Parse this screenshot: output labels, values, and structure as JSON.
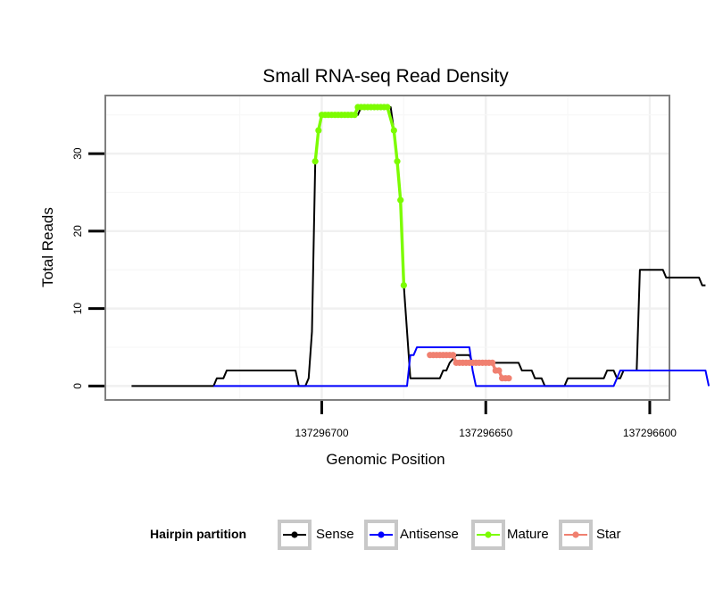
{
  "chart_data": {
    "type": "line",
    "title": "Small RNA-seq Read Density",
    "xlabel": "Genomic Position",
    "ylabel": "Total Reads",
    "xlim": [
      137296766,
      137296594
    ],
    "ylim": [
      -1.8,
      37.5
    ],
    "x_reversed": true,
    "x_ticks": [
      137296700,
      137296650,
      137296600
    ],
    "x_tick_labels": [
      "137296700",
      "137296650",
      "137296600"
    ],
    "y_ticks": [
      0,
      10,
      20,
      30
    ],
    "y_tick_labels": [
      "0",
      "10",
      "20",
      "30"
    ],
    "legend": {
      "title": "Hairpin partition",
      "position": "bottom",
      "entries": [
        "Sense",
        "Antisense",
        "Mature",
        "Star"
      ]
    },
    "colors": {
      "Sense": "#000000",
      "Antisense": "#0000ff",
      "Mature": "#7cfc00",
      "Star": "#f08070"
    },
    "series": [
      {
        "name": "Sense",
        "points": [
          [
            137296758,
            0
          ],
          [
            137296733,
            0
          ],
          [
            137296732,
            1
          ],
          [
            137296730,
            1
          ],
          [
            137296729,
            2
          ],
          [
            137296717,
            2
          ],
          [
            137296708,
            2
          ],
          [
            137296707,
            0
          ],
          [
            137296705,
            0
          ],
          [
            137296704,
            1
          ],
          [
            137296703,
            7
          ],
          [
            137296702,
            29
          ],
          [
            137296701,
            33
          ],
          [
            137296700,
            35
          ],
          [
            137296699,
            35
          ],
          [
            137296689,
            35
          ],
          [
            137296688,
            36
          ],
          [
            137296679,
            36
          ],
          [
            137296678,
            33
          ],
          [
            137296677,
            29
          ],
          [
            137296676,
            24
          ],
          [
            137296675,
            13
          ],
          [
            137296673,
            1
          ],
          [
            137296664,
            1
          ],
          [
            137296663,
            2
          ],
          [
            137296662,
            2
          ],
          [
            137296661,
            3
          ],
          [
            137296659,
            4
          ],
          [
            137296655,
            4
          ],
          [
            137296654,
            3
          ],
          [
            137296640,
            3
          ],
          [
            137296639,
            2
          ],
          [
            137296636,
            2
          ],
          [
            137296635,
            1
          ],
          [
            137296633,
            1
          ],
          [
            137296632,
            0
          ],
          [
            137296626,
            0
          ],
          [
            137296625,
            1
          ],
          [
            137296614,
            1
          ],
          [
            137296613,
            2
          ],
          [
            137296611,
            2
          ],
          [
            137296610,
            1
          ],
          [
            137296609,
            1
          ],
          [
            137296608,
            2
          ],
          [
            137296604,
            2
          ],
          [
            137296603,
            15
          ],
          [
            137296596,
            15
          ],
          [
            137296595,
            14
          ],
          [
            137296585,
            14
          ],
          [
            137296584,
            13
          ],
          [
            137296583,
            13
          ]
        ]
      },
      {
        "name": "Antisense",
        "points": [
          [
            137296733,
            0
          ],
          [
            137296674,
            0
          ],
          [
            137296673,
            4
          ],
          [
            137296672,
            4
          ],
          [
            137296671,
            5
          ],
          [
            137296655,
            5
          ],
          [
            137296654,
            2
          ],
          [
            137296653,
            0
          ],
          [
            137296611,
            0
          ],
          [
            137296610,
            1
          ],
          [
            137296609,
            2
          ],
          [
            137296590,
            2
          ],
          [
            137296583,
            2
          ],
          [
            137296582,
            0
          ]
        ]
      },
      {
        "name": "Mature",
        "points": [
          [
            137296702,
            29
          ],
          [
            137296701,
            33
          ],
          [
            137296700,
            35
          ],
          [
            137296699,
            35
          ],
          [
            137296698,
            35
          ],
          [
            137296697,
            35
          ],
          [
            137296696,
            35
          ],
          [
            137296695,
            35
          ],
          [
            137296694,
            35
          ],
          [
            137296693,
            35
          ],
          [
            137296692,
            35
          ],
          [
            137296691,
            35
          ],
          [
            137296690,
            35
          ],
          [
            137296689,
            36
          ],
          [
            137296688,
            36
          ],
          [
            137296687,
            36
          ],
          [
            137296686,
            36
          ],
          [
            137296685,
            36
          ],
          [
            137296684,
            36
          ],
          [
            137296683,
            36
          ],
          [
            137296682,
            36
          ],
          [
            137296681,
            36
          ],
          [
            137296680,
            36
          ],
          [
            137296678,
            33
          ],
          [
            137296677,
            29
          ],
          [
            137296676,
            24
          ],
          [
            137296675,
            13
          ]
        ]
      },
      {
        "name": "Star",
        "points": [
          [
            137296667,
            4
          ],
          [
            137296666,
            4
          ],
          [
            137296665,
            4
          ],
          [
            137296664,
            4
          ],
          [
            137296663,
            4
          ],
          [
            137296662,
            4
          ],
          [
            137296661,
            4
          ],
          [
            137296660,
            4
          ],
          [
            137296659,
            3
          ],
          [
            137296658,
            3
          ],
          [
            137296657,
            3
          ],
          [
            137296656,
            3
          ],
          [
            137296655,
            3
          ],
          [
            137296654,
            3
          ],
          [
            137296653,
            3
          ],
          [
            137296652,
            3
          ],
          [
            137296651,
            3
          ],
          [
            137296650,
            3
          ],
          [
            137296649,
            3
          ],
          [
            137296648,
            3
          ],
          [
            137296647,
            2
          ],
          [
            137296646,
            2
          ],
          [
            137296645,
            1
          ],
          [
            137296644,
            1
          ],
          [
            137296643,
            1
          ]
        ]
      }
    ]
  }
}
